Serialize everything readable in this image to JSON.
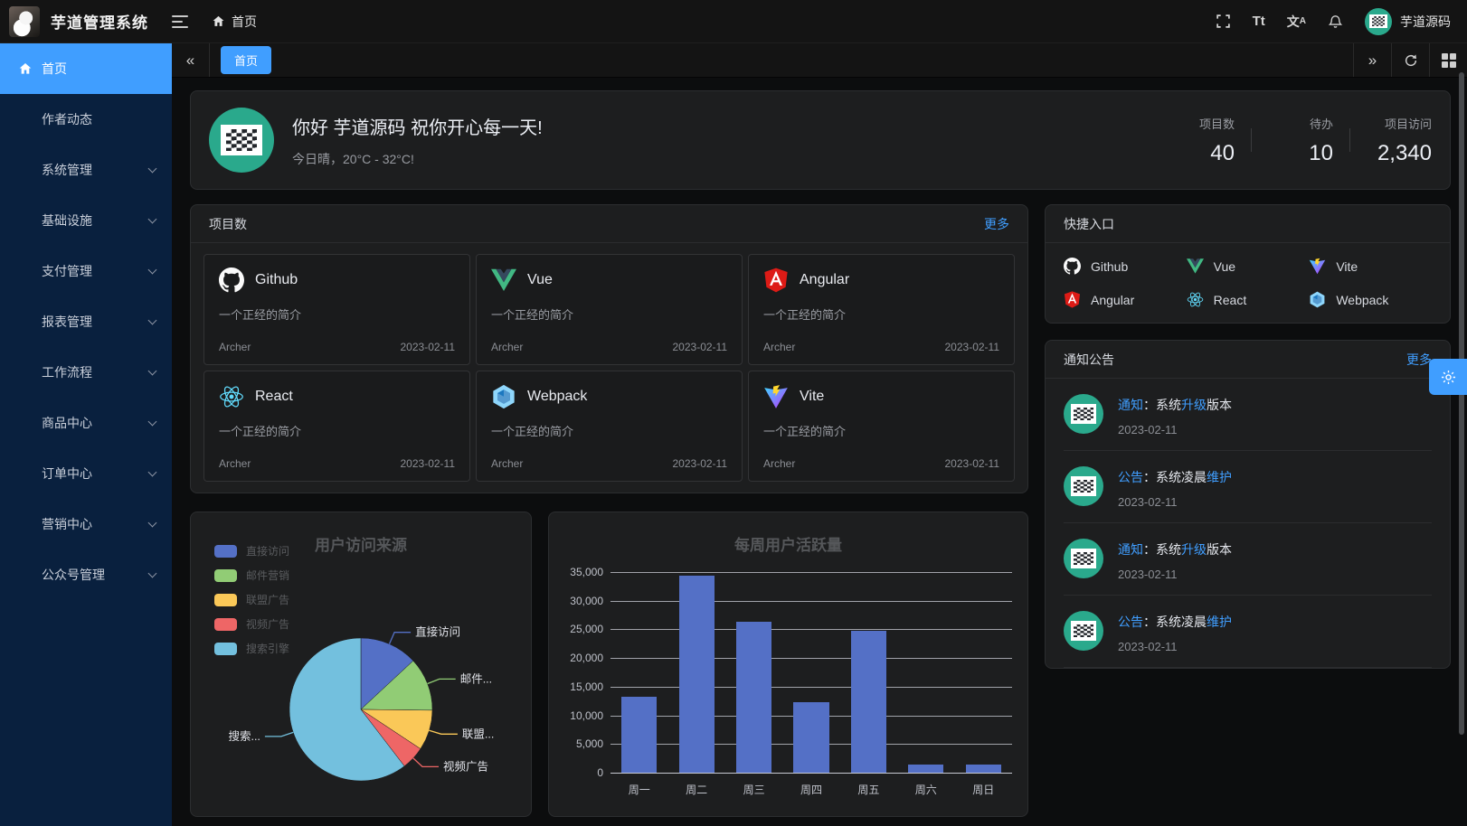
{
  "topbar": {
    "app_title": "芋道管理系统",
    "breadcrumb": "首页",
    "username": "芋道源码",
    "icons": [
      "fullscreen-icon",
      "font-size-icon",
      "locale-icon",
      "bell-icon"
    ]
  },
  "tabbar": {
    "active_tab": "首页"
  },
  "sidebar": {
    "items": [
      {
        "label": "首页",
        "icon": "home",
        "arrow": false,
        "active": true
      },
      {
        "label": "作者动态",
        "icon": null,
        "arrow": false,
        "active": false
      },
      {
        "label": "系统管理",
        "icon": null,
        "arrow": true,
        "active": false
      },
      {
        "label": "基础设施",
        "icon": null,
        "arrow": true,
        "active": false
      },
      {
        "label": "支付管理",
        "icon": null,
        "arrow": true,
        "active": false
      },
      {
        "label": "报表管理",
        "icon": null,
        "arrow": true,
        "active": false
      },
      {
        "label": "工作流程",
        "icon": null,
        "arrow": true,
        "active": false
      },
      {
        "label": "商品中心",
        "icon": null,
        "arrow": true,
        "active": false
      },
      {
        "label": "订单中心",
        "icon": null,
        "arrow": true,
        "active": false
      },
      {
        "label": "营销中心",
        "icon": null,
        "arrow": true,
        "active": false
      },
      {
        "label": "公众号管理",
        "icon": null,
        "arrow": true,
        "active": false
      }
    ]
  },
  "greeting": {
    "title": "你好 芋道源码 祝你开心每一天!",
    "subtitle": "今日晴，20°C - 32°C!",
    "stats": [
      {
        "label": "项目数",
        "value": "40"
      },
      {
        "label": "待办",
        "value": "10"
      },
      {
        "label": "项目访问",
        "value": "2,340"
      }
    ]
  },
  "projects": {
    "title": "项目数",
    "more": "更多",
    "items": [
      {
        "name": "Github",
        "icon": "github",
        "desc": "一个正经的简介",
        "author": "Archer",
        "date": "2023-02-11"
      },
      {
        "name": "Vue",
        "icon": "vue",
        "desc": "一个正经的简介",
        "author": "Archer",
        "date": "2023-02-11"
      },
      {
        "name": "Angular",
        "icon": "angular",
        "desc": "一个正经的简介",
        "author": "Archer",
        "date": "2023-02-11"
      },
      {
        "name": "React",
        "icon": "react",
        "desc": "一个正经的简介",
        "author": "Archer",
        "date": "2023-02-11"
      },
      {
        "name": "Webpack",
        "icon": "webpack",
        "desc": "一个正经的简介",
        "author": "Archer",
        "date": "2023-02-11"
      },
      {
        "name": "Vite",
        "icon": "vite",
        "desc": "一个正经的简介",
        "author": "Archer",
        "date": "2023-02-11"
      }
    ]
  },
  "shortcuts": {
    "title": "快捷入口",
    "items": [
      {
        "name": "Github",
        "icon": "github"
      },
      {
        "name": "Vue",
        "icon": "vue"
      },
      {
        "name": "Vite",
        "icon": "vite"
      },
      {
        "name": "Angular",
        "icon": "angular"
      },
      {
        "name": "React",
        "icon": "react"
      },
      {
        "name": "Webpack",
        "icon": "webpack"
      }
    ]
  },
  "notices": {
    "title": "通知公告",
    "more": "更多",
    "items": [
      {
        "segments": [
          {
            "text": "通知",
            "hl": true
          },
          {
            "text": "：系统",
            "hl": false
          },
          {
            "text": "升级",
            "hl": true
          },
          {
            "text": "版本",
            "hl": false
          }
        ],
        "date": "2023-02-11"
      },
      {
        "segments": [
          {
            "text": "公告",
            "hl": true
          },
          {
            "text": "：系统凌晨",
            "hl": false
          },
          {
            "text": "维护",
            "hl": true
          }
        ],
        "date": "2023-02-11"
      },
      {
        "segments": [
          {
            "text": "通知",
            "hl": true
          },
          {
            "text": "：系统",
            "hl": false
          },
          {
            "text": "升级",
            "hl": true
          },
          {
            "text": "版本",
            "hl": false
          }
        ],
        "date": "2023-02-11"
      },
      {
        "segments": [
          {
            "text": "公告",
            "hl": true
          },
          {
            "text": "：系统凌晨",
            "hl": false
          },
          {
            "text": "维护",
            "hl": true
          }
        ],
        "date": "2023-02-11"
      }
    ]
  },
  "chart_data": [
    {
      "type": "pie",
      "title": "用户访问来源",
      "legend_position": "top-left",
      "series": "访问来源",
      "data": [
        {
          "name": "直接访问",
          "display": "直接访问",
          "value": 335,
          "color": "#5470c6"
        },
        {
          "name": "邮件营销",
          "display": "邮件...",
          "value": 310,
          "color": "#91cc75"
        },
        {
          "name": "联盟广告",
          "display": "联盟...",
          "value": 234,
          "color": "#fac858"
        },
        {
          "name": "视频广告",
          "display": "视频广告",
          "value": 135,
          "color": "#ee6666"
        },
        {
          "name": "搜索引擎",
          "display": "搜索...",
          "value": 1548,
          "color": "#73c0de"
        }
      ]
    },
    {
      "type": "bar",
      "title": "每周用户活跃量",
      "categories": [
        "周一",
        "周二",
        "周三",
        "周四",
        "周五",
        "周六",
        "周日"
      ],
      "values": [
        13200,
        34300,
        26400,
        12300,
        24700,
        1400,
        1400
      ],
      "xlabel": "",
      "ylabel": "",
      "ylim": [
        0,
        35000
      ],
      "ytick_step": 5000,
      "grid": true,
      "bar_color": "#5470c6"
    }
  ],
  "colors": {
    "primary": "#409eff",
    "sidebar_bg": "#09203e",
    "panel_bg": "#1d1e1f",
    "avatar_green": "#2aa98c"
  }
}
